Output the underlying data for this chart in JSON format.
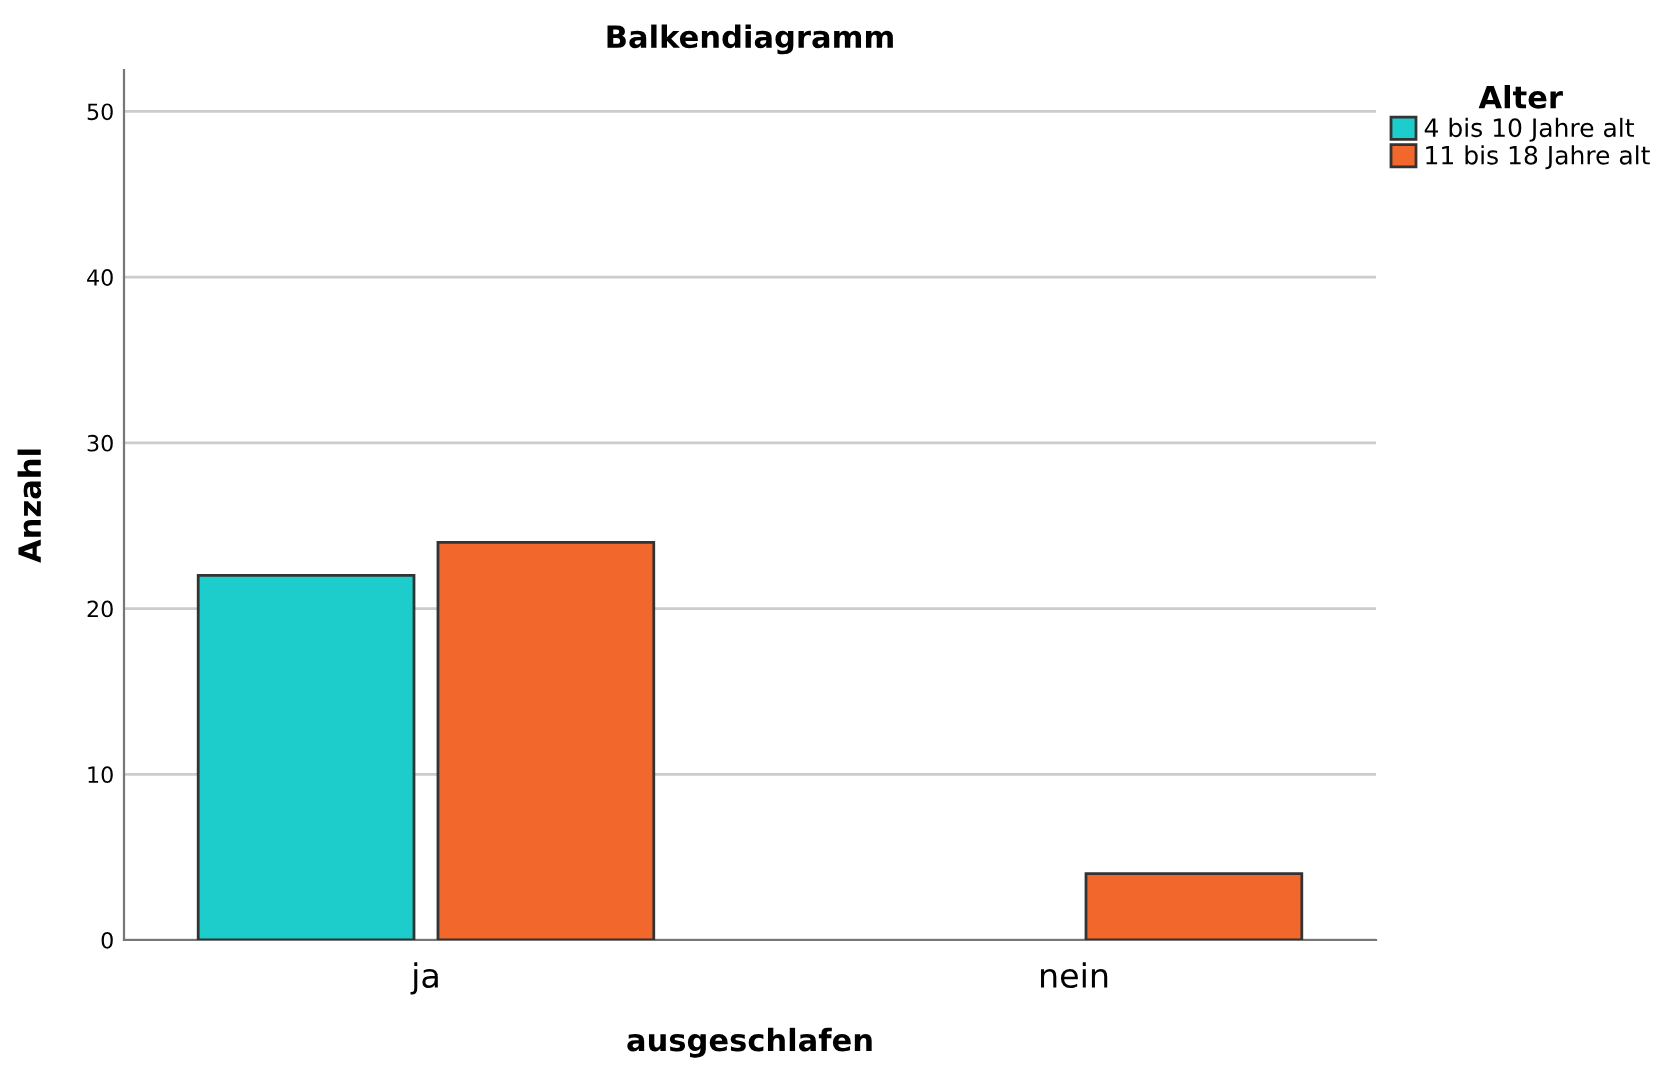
{
  "chart_data": {
    "type": "bar",
    "title": "Balkendiagramm",
    "xlabel": "ausgeschlafen",
    "ylabel": "Anzahl",
    "legend_title": "Alter",
    "categories": [
      "ja",
      "nein"
    ],
    "series": [
      {
        "name": "4 bis 10 Jahre alt",
        "color": "#1ccdcb",
        "values": [
          22,
          null
        ]
      },
      {
        "name": "11 bis 18 Jahre alt",
        "color": "#f2682c",
        "values": [
          24,
          4
        ]
      }
    ],
    "ylim": [
      0,
      52.5
    ],
    "yticks": [
      0,
      10,
      20,
      30,
      40,
      50
    ],
    "grid": "y",
    "legend": "top right"
  }
}
